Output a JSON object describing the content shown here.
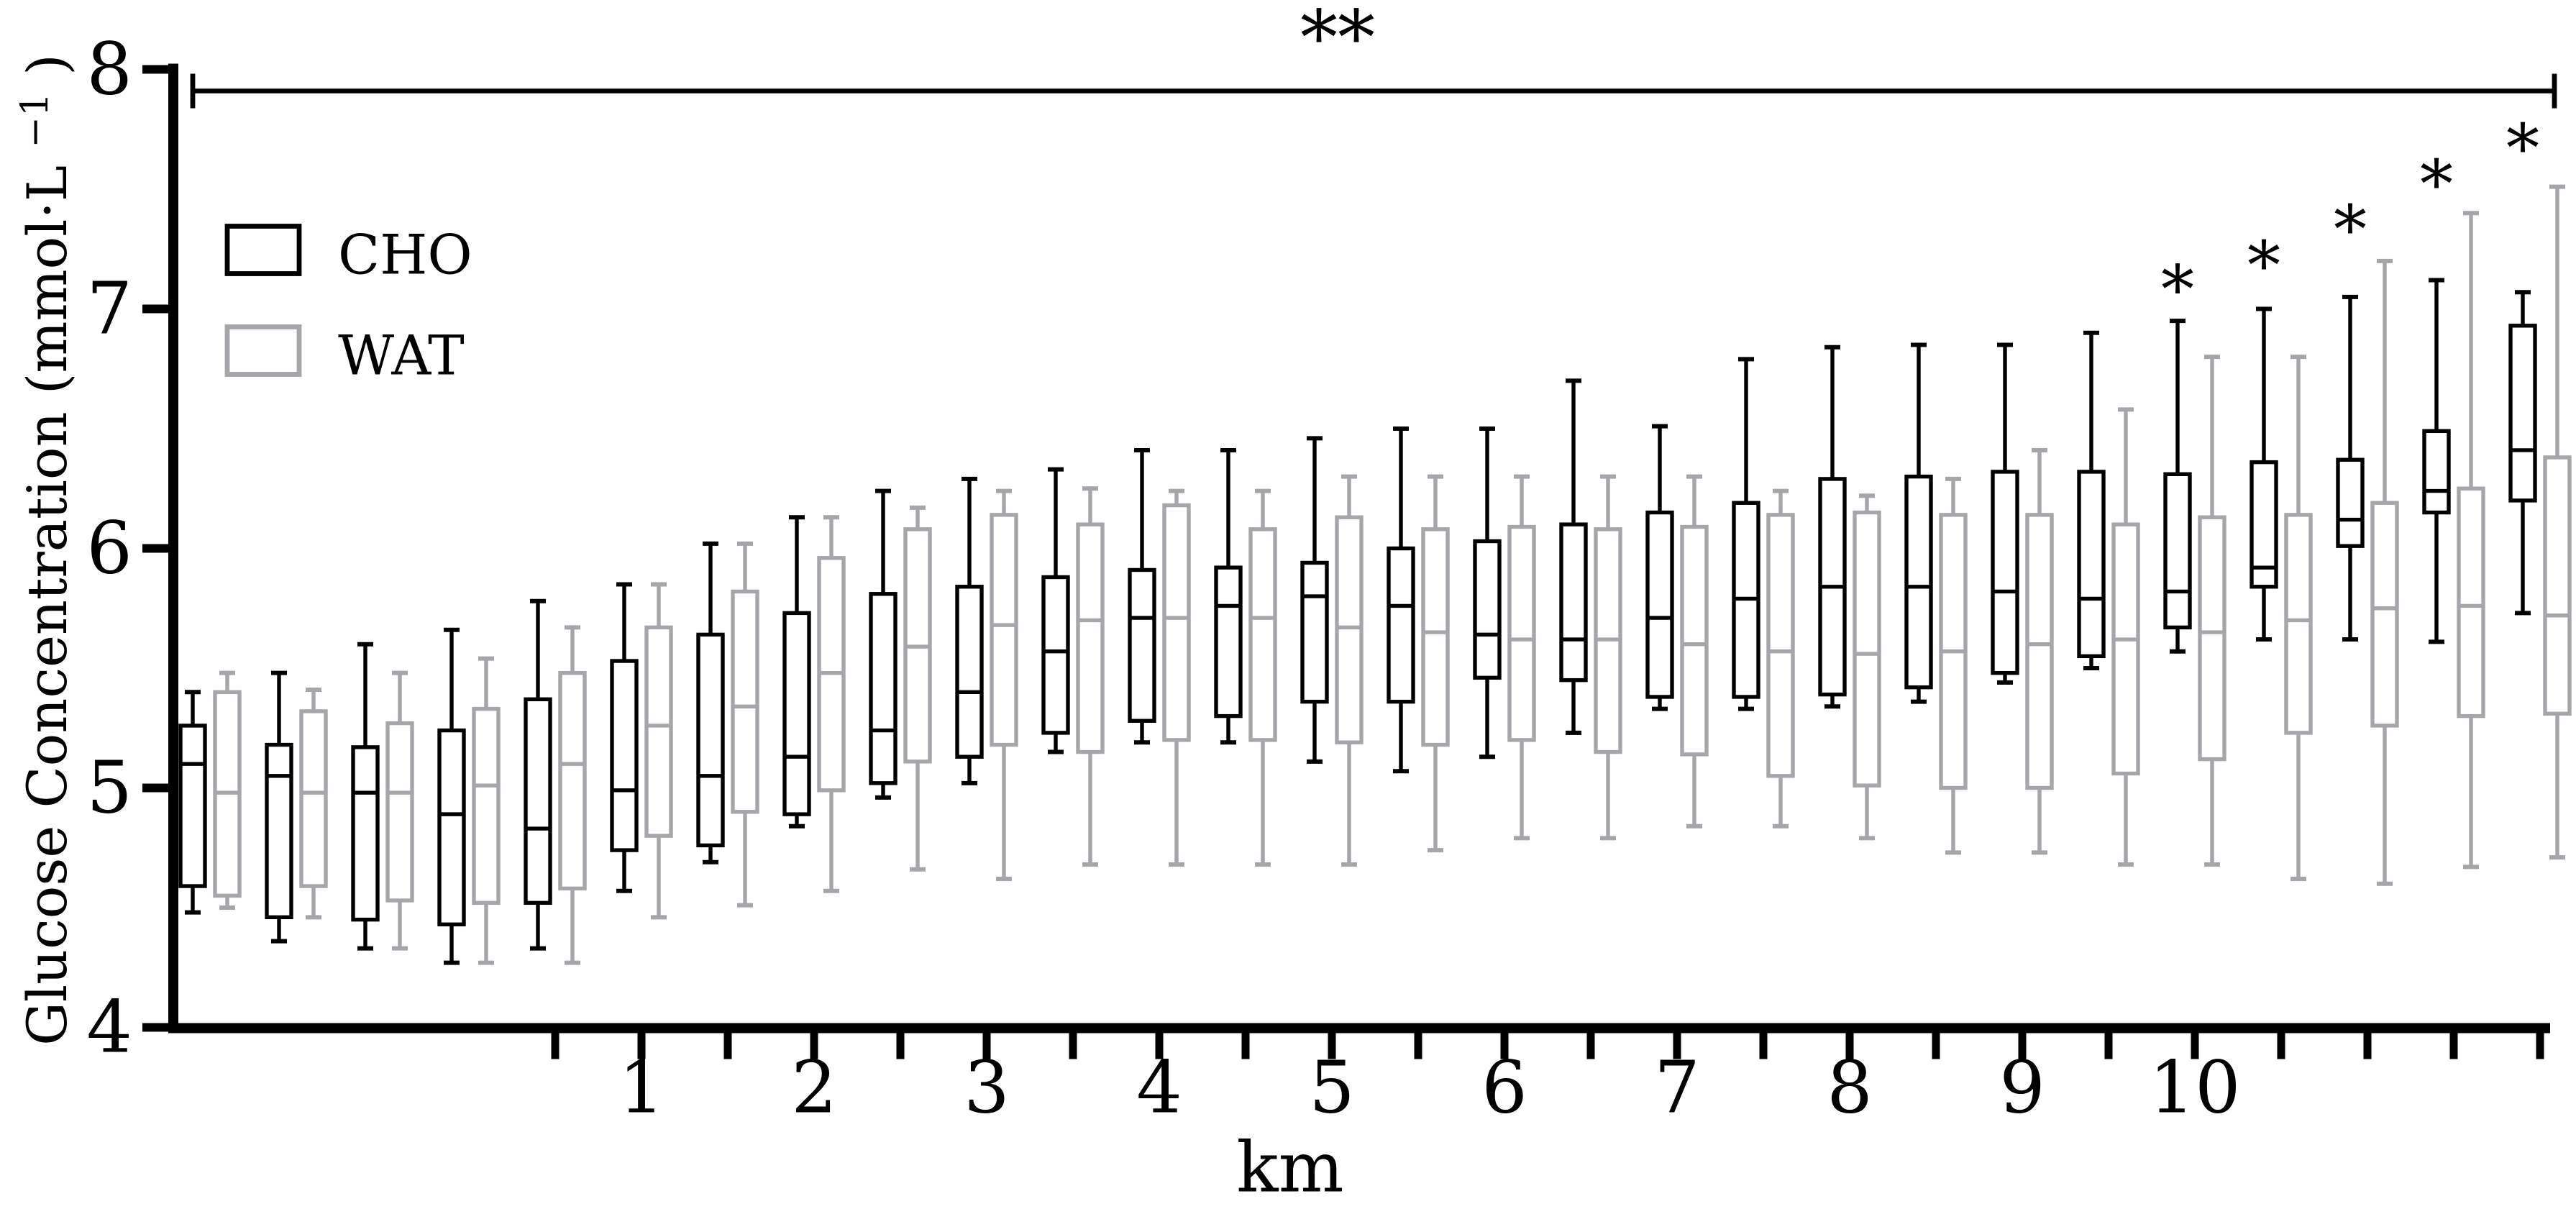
{
  "figure": {
    "kind": "grouped-boxplot",
    "background": "#ffffff"
  },
  "y_axis": {
    "label_full": "Glucose Concentration (mmol·L⁻¹)",
    "label_pre": "Glucose Concentration (mmol·L",
    "label_sup": "−1",
    "label_post": ")",
    "ticks": [
      "8",
      "7",
      "6",
      "5",
      "4"
    ],
    "tick_values": [
      8,
      7,
      6,
      5,
      4
    ],
    "range": [
      4,
      8
    ]
  },
  "x_axis": {
    "title": "km",
    "tick_labels": [
      "1",
      "2",
      "3",
      "4",
      "5",
      "6",
      "7",
      "8",
      "9",
      "10"
    ],
    "labeled_slots": [
      6,
      8,
      10,
      12,
      14,
      16,
      18,
      20,
      22,
      24
    ],
    "minor_tick_slots_from": 5,
    "minor_tick_slots_to": 28
  },
  "legend": [
    {
      "label": "CHO",
      "color": "#000000"
    },
    {
      "label": "WAT",
      "color": "#a6a6aa"
    }
  ],
  "annotations": {
    "overall_label": "**",
    "point_label": "*"
  },
  "chart_data": {
    "type": "boxplot",
    "title": "",
    "xlabel": "km",
    "ylabel": "Glucose Concentration (mmol·L⁻¹)",
    "ylim": [
      4,
      8
    ],
    "n_slots": 28,
    "categories_km": [
      null,
      null,
      null,
      null,
      0.5,
      1,
      1.5,
      2,
      2.5,
      3,
      3.5,
      4,
      4.5,
      5,
      5.5,
      6,
      6.5,
      7,
      7.5,
      8,
      8.5,
      9,
      9.5,
      10,
      10.5,
      11,
      11.5,
      12
    ],
    "value_order": [
      "min",
      "q1",
      "median",
      "q3",
      "max"
    ],
    "series": [
      {
        "name": "CHO",
        "color": "#000000",
        "data": [
          [
            4.48,
            4.59,
            5.1,
            5.26,
            5.4
          ],
          [
            4.36,
            4.46,
            5.05,
            5.18,
            5.48
          ],
          [
            4.33,
            4.45,
            4.98,
            5.17,
            5.6
          ],
          [
            4.27,
            4.43,
            4.89,
            5.24,
            5.66
          ],
          [
            4.33,
            4.52,
            4.83,
            5.37,
            5.78
          ],
          [
            4.57,
            4.74,
            4.99,
            5.53,
            5.85
          ],
          [
            4.69,
            4.76,
            5.05,
            5.64,
            6.02
          ],
          [
            4.84,
            4.89,
            5.13,
            5.73,
            6.13
          ],
          [
            4.96,
            5.02,
            5.24,
            5.81,
            6.24
          ],
          [
            5.02,
            5.13,
            5.4,
            5.84,
            6.29
          ],
          [
            5.15,
            5.23,
            5.57,
            5.88,
            6.33
          ],
          [
            5.19,
            5.28,
            5.71,
            5.91,
            6.41
          ],
          [
            5.19,
            5.3,
            5.76,
            5.92,
            6.41
          ],
          [
            5.11,
            5.36,
            5.8,
            5.94,
            6.46
          ],
          [
            5.07,
            5.36,
            5.76,
            6.0,
            6.5
          ],
          [
            5.13,
            5.46,
            5.64,
            6.03,
            6.5
          ],
          [
            5.23,
            5.45,
            5.62,
            6.1,
            6.7
          ],
          [
            5.33,
            5.38,
            5.71,
            6.15,
            6.51
          ],
          [
            5.33,
            5.38,
            5.79,
            6.19,
            6.79
          ],
          [
            5.34,
            5.39,
            5.84,
            6.29,
            6.84
          ],
          [
            5.36,
            5.42,
            5.84,
            6.3,
            6.85
          ],
          [
            5.44,
            5.48,
            5.82,
            6.32,
            6.85
          ],
          [
            5.5,
            5.55,
            5.79,
            6.32,
            6.9
          ],
          [
            5.57,
            5.67,
            5.82,
            6.31,
            6.95
          ],
          [
            5.62,
            5.84,
            5.92,
            6.36,
            7.0
          ],
          [
            5.62,
            6.01,
            6.12,
            6.37,
            7.05
          ],
          [
            5.61,
            6.15,
            6.24,
            6.49,
            7.12
          ],
          [
            5.73,
            6.2,
            6.41,
            6.93,
            7.07
          ]
        ]
      },
      {
        "name": "WAT",
        "color": "#a6a6aa",
        "data": [
          [
            4.5,
            4.55,
            4.98,
            5.4,
            5.48
          ],
          [
            4.46,
            4.59,
            4.98,
            5.32,
            5.41
          ],
          [
            4.33,
            4.53,
            4.98,
            5.27,
            5.48
          ],
          [
            4.27,
            4.52,
            5.01,
            5.33,
            5.54
          ],
          [
            4.27,
            4.58,
            5.1,
            5.48,
            5.67
          ],
          [
            4.46,
            4.8,
            5.26,
            5.67,
            5.85
          ],
          [
            4.51,
            4.9,
            5.34,
            5.82,
            6.02
          ],
          [
            4.57,
            4.99,
            5.48,
            5.96,
            6.13
          ],
          [
            4.66,
            5.11,
            5.59,
            6.08,
            6.17
          ],
          [
            4.62,
            5.18,
            5.68,
            6.14,
            6.24
          ],
          [
            4.68,
            5.15,
            5.7,
            6.1,
            6.25
          ],
          [
            4.68,
            5.2,
            5.71,
            6.18,
            6.24
          ],
          [
            4.68,
            5.2,
            5.71,
            6.08,
            6.24
          ],
          [
            4.68,
            5.19,
            5.67,
            6.13,
            6.3
          ],
          [
            4.74,
            5.18,
            5.65,
            6.08,
            6.3
          ],
          [
            4.79,
            5.2,
            5.62,
            6.09,
            6.3
          ],
          [
            4.79,
            5.15,
            5.62,
            6.08,
            6.3
          ],
          [
            4.84,
            5.14,
            5.6,
            6.09,
            6.3
          ],
          [
            4.84,
            5.05,
            5.57,
            6.14,
            6.24
          ],
          [
            4.79,
            5.01,
            5.56,
            6.15,
            6.22
          ],
          [
            4.73,
            5.0,
            5.57,
            6.14,
            6.29
          ],
          [
            4.73,
            5.0,
            5.6,
            6.14,
            6.41
          ],
          [
            4.68,
            5.06,
            5.62,
            6.1,
            6.58
          ],
          [
            4.68,
            5.12,
            5.65,
            6.13,
            6.8
          ],
          [
            4.62,
            5.23,
            5.7,
            6.14,
            6.8
          ],
          [
            4.6,
            5.26,
            5.75,
            6.19,
            7.2
          ],
          [
            4.67,
            5.3,
            5.76,
            6.25,
            7.4
          ],
          [
            4.71,
            5.31,
            5.72,
            6.38,
            7.51
          ]
        ]
      }
    ],
    "significance": {
      "overall_bracket": {
        "label": "**",
        "spans": "all"
      },
      "cho_points": [
        {
          "slot": 24,
          "label": "*",
          "y": 7.08
        },
        {
          "slot": 25,
          "label": "*",
          "y": 7.18
        },
        {
          "slot": 26,
          "label": "*",
          "y": 7.33
        },
        {
          "slot": 27,
          "label": "*",
          "y": 7.52
        },
        {
          "slot": 28,
          "label": "*",
          "y": 7.67
        }
      ]
    },
    "legend_position": "top-left-inside",
    "grid": false
  }
}
